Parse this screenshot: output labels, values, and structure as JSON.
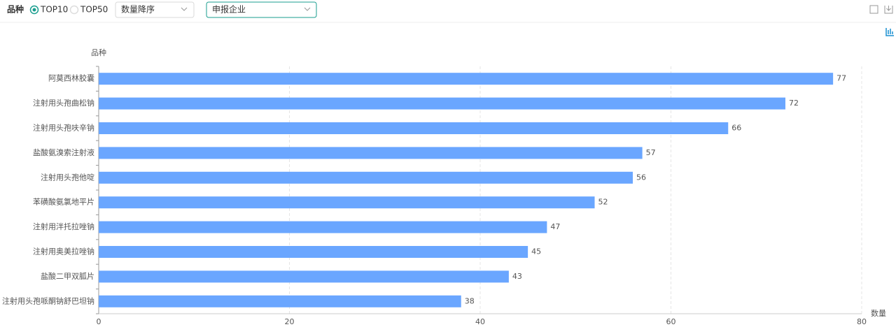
{
  "toolbar": {
    "label": "品种",
    "options": [
      "TOP10",
      "TOP50"
    ],
    "selected": 0,
    "sort": "数量降序",
    "group": "申报企业"
  },
  "chart_data": {
    "type": "bar",
    "orientation": "horizontal",
    "y_label": "品种",
    "x_label": "数量",
    "categories": [
      "阿莫西林胶囊",
      "注射用头孢曲松钠",
      "注射用头孢呋辛钠",
      "盐酸氨溴索注射液",
      "注射用头孢他啶",
      "苯磺酸氨氯地平片",
      "注射用泮托拉唑钠",
      "注射用奥美拉唑钠",
      "盐酸二甲双胍片",
      "注射用头孢哌酮钠舒巴坦钠"
    ],
    "values": [
      77,
      72,
      66,
      57,
      56,
      52,
      47,
      45,
      43,
      38
    ],
    "color": "#6aa6ff",
    "xlim": [
      0,
      80
    ],
    "xticks": [
      0,
      20,
      40,
      60,
      80
    ],
    "grid": true
  }
}
